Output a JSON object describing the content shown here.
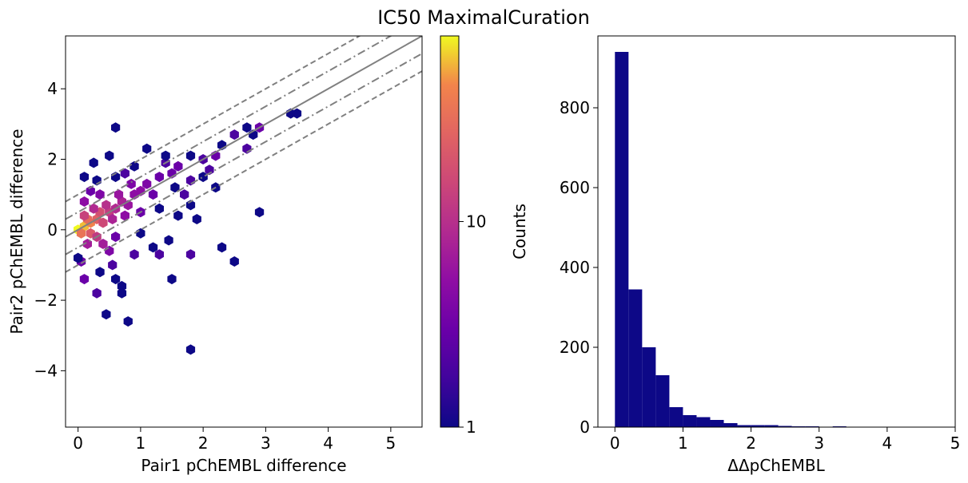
{
  "title": "IC50 MaximalCuration",
  "chart_data": [
    {
      "type": "hexbin",
      "xlabel": "Pair1 pChEMBL difference",
      "ylabel": "Pair2 pChEMBL difference",
      "xlim": [
        -0.2,
        5.5
      ],
      "ylim": [
        -5.6,
        5.5
      ],
      "xticks": [
        0,
        1,
        2,
        3,
        4,
        5
      ],
      "yticks": [
        -4,
        -2,
        0,
        2,
        4
      ],
      "colormap": "plasma",
      "color_scale": "log",
      "colorbar": {
        "label": "Counts",
        "ticks": [
          1,
          10
        ],
        "range": [
          1,
          80
        ]
      },
      "reference_lines": [
        {
          "style": "solid",
          "color": "#808080",
          "offset": 0
        },
        {
          "style": "dashdot",
          "color": "#808080",
          "offset": 0.5
        },
        {
          "style": "dashdot",
          "color": "#808080",
          "offset": -0.5
        },
        {
          "style": "dashed",
          "color": "#808080",
          "offset": 1.0
        },
        {
          "style": "dashed",
          "color": "#808080",
          "offset": -1.0
        }
      ],
      "points": [
        [
          0.0,
          0.0,
          80
        ],
        [
          0.1,
          0.1,
          60
        ],
        [
          0.2,
          0.2,
          45
        ],
        [
          0.05,
          -0.1,
          35
        ],
        [
          0.15,
          0.3,
          30
        ],
        [
          0.3,
          0.3,
          25
        ],
        [
          0.2,
          -0.1,
          22
        ],
        [
          0.35,
          0.5,
          18
        ],
        [
          0.4,
          0.2,
          16
        ],
        [
          0.1,
          0.4,
          14
        ],
        [
          0.5,
          0.5,
          13
        ],
        [
          0.3,
          -0.2,
          12
        ],
        [
          0.45,
          0.7,
          10
        ],
        [
          0.6,
          0.6,
          9
        ],
        [
          0.25,
          0.6,
          9
        ],
        [
          0.55,
          0.3,
          8
        ],
        [
          0.7,
          0.8,
          8
        ],
        [
          0.15,
          -0.4,
          7
        ],
        [
          0.4,
          -0.4,
          7
        ],
        [
          0.8,
          0.7,
          6
        ],
        [
          0.65,
          1.0,
          6
        ],
        [
          0.1,
          0.8,
          5
        ],
        [
          0.9,
          1.0,
          5
        ],
        [
          0.75,
          0.4,
          5
        ],
        [
          1.0,
          1.1,
          5
        ],
        [
          0.35,
          1.0,
          4
        ],
        [
          0.5,
          -0.6,
          4
        ],
        [
          1.1,
          1.3,
          4
        ],
        [
          0.85,
          1.3,
          4
        ],
        [
          0.2,
          1.1,
          3
        ],
        [
          1.2,
          1.0,
          3
        ],
        [
          1.3,
          1.5,
          3
        ],
        [
          0.6,
          -0.2,
          3
        ],
        [
          1.0,
          0.5,
          3
        ],
        [
          0.05,
          -0.9,
          3
        ],
        [
          0.1,
          -1.4,
          3
        ],
        [
          1.5,
          1.6,
          3
        ],
        [
          1.6,
          1.8,
          3
        ],
        [
          2.2,
          2.1,
          3
        ],
        [
          2.9,
          2.9,
          3
        ],
        [
          0.3,
          -1.8,
          2
        ],
        [
          0.55,
          -1.0,
          2
        ],
        [
          0.75,
          1.6,
          2
        ],
        [
          1.4,
          1.9,
          2
        ],
        [
          1.8,
          1.4,
          2
        ],
        [
          2.0,
          2.0,
          2
        ],
        [
          1.3,
          -0.7,
          2
        ],
        [
          1.8,
          -0.7,
          2
        ],
        [
          0.9,
          -0.7,
          2
        ],
        [
          1.7,
          1.0,
          2
        ],
        [
          2.1,
          1.7,
          2
        ],
        [
          2.5,
          2.7,
          2
        ],
        [
          2.7,
          2.3,
          2
        ],
        [
          0.6,
          2.9,
          1
        ],
        [
          1.1,
          2.3,
          1
        ],
        [
          0.5,
          2.1,
          1
        ],
        [
          0.1,
          1.5,
          1
        ],
        [
          0.25,
          1.9,
          1
        ],
        [
          1.4,
          2.1,
          1
        ],
        [
          1.8,
          2.1,
          1
        ],
        [
          2.0,
          1.5,
          1
        ],
        [
          2.2,
          1.2,
          1
        ],
        [
          2.3,
          2.4,
          1
        ],
        [
          2.7,
          2.9,
          1
        ],
        [
          2.8,
          2.7,
          1
        ],
        [
          3.4,
          3.3,
          1
        ],
        [
          3.5,
          3.3,
          1
        ],
        [
          2.9,
          0.5,
          1
        ],
        [
          2.5,
          -0.9,
          1
        ],
        [
          2.3,
          -0.5,
          1
        ],
        [
          1.9,
          0.3,
          1
        ],
        [
          1.3,
          0.6,
          1
        ],
        [
          1.6,
          0.4,
          1
        ],
        [
          1.0,
          -0.1,
          1
        ],
        [
          1.2,
          -0.5,
          1
        ],
        [
          1.5,
          -1.4,
          1
        ],
        [
          0.7,
          -1.6,
          1
        ],
        [
          0.6,
          -1.4,
          1
        ],
        [
          0.7,
          -1.8,
          1
        ],
        [
          0.45,
          -2.4,
          1
        ],
        [
          0.8,
          -2.6,
          1
        ],
        [
          1.8,
          -3.4,
          1
        ],
        [
          0.0,
          -0.8,
          1
        ],
        [
          0.35,
          -1.2,
          1
        ],
        [
          1.45,
          -0.3,
          1
        ],
        [
          1.8,
          0.7,
          1
        ],
        [
          1.55,
          1.2,
          1
        ],
        [
          0.9,
          1.8,
          1
        ],
        [
          0.3,
          1.4,
          1
        ],
        [
          0.6,
          1.5,
          1
        ]
      ]
    },
    {
      "type": "histogram",
      "xlabel": "ΔΔpChEMBL",
      "xlim": [
        -0.25,
        5.0
      ],
      "ylim": [
        0,
        980
      ],
      "xticks": [
        0,
        1,
        2,
        3,
        4,
        5
      ],
      "yticks": [
        0,
        200,
        400,
        600,
        800
      ],
      "color": "#0d0887",
      "bin_width": 0.2,
      "bin_start": 0.0,
      "counts": [
        940,
        345,
        200,
        130,
        50,
        30,
        25,
        18,
        10,
        5,
        5,
        5,
        3,
        2,
        2,
        1,
        2,
        1,
        0,
        0
      ]
    }
  ]
}
